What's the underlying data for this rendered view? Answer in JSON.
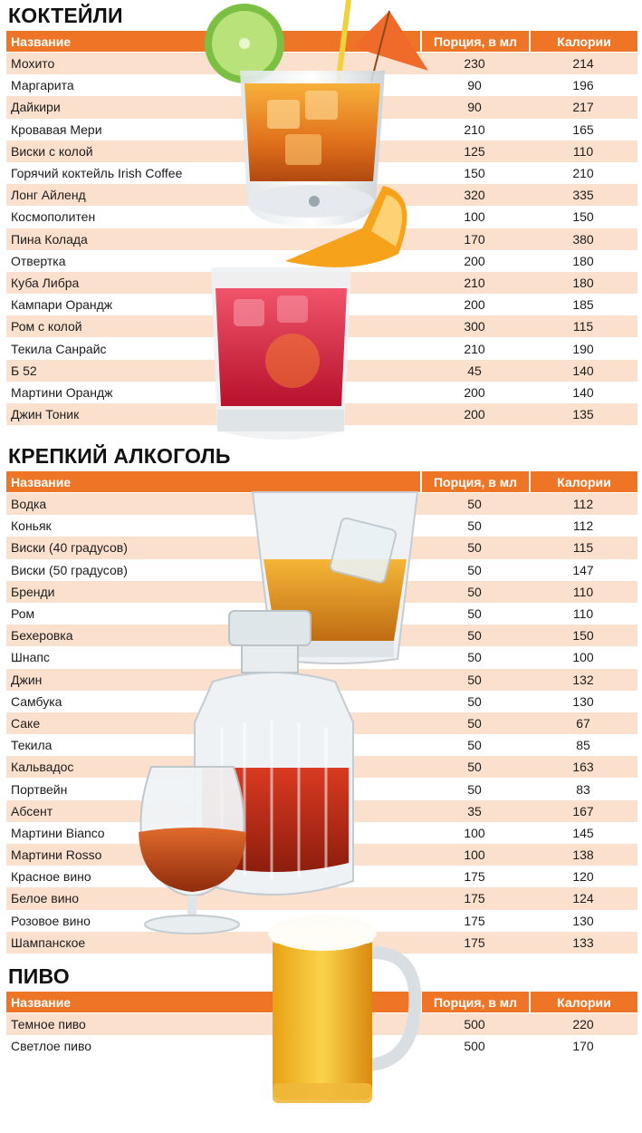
{
  "columns": {
    "name": "Название",
    "portion": "Порция, в мл",
    "calories": "Калории"
  },
  "sections": [
    {
      "title": "КОКТЕЙЛИ",
      "rows": [
        {
          "name": "Мохито",
          "portion": "230",
          "calories": "214"
        },
        {
          "name": "Маргарита",
          "portion": "90",
          "calories": "196"
        },
        {
          "name": "Дайкири",
          "portion": "90",
          "calories": "217"
        },
        {
          "name": "Кровавая Мери",
          "portion": "210",
          "calories": "165"
        },
        {
          "name": "Виски с колой",
          "portion": "125",
          "calories": "110"
        },
        {
          "name": "Горячий коктейль Irish Coffee",
          "portion": "150",
          "calories": "210"
        },
        {
          "name": "Лонг Айленд",
          "portion": "320",
          "calories": "335"
        },
        {
          "name": "Космополитен",
          "portion": "100",
          "calories": "150"
        },
        {
          "name": "Пина Колада",
          "portion": "170",
          "calories": "380"
        },
        {
          "name": "Отвертка",
          "portion": "200",
          "calories": "180"
        },
        {
          "name": "Куба Либра",
          "portion": "210",
          "calories": "180"
        },
        {
          "name": "Кампари Орандж",
          "portion": "200",
          "calories": "185"
        },
        {
          "name": "Ром с колой",
          "portion": "300",
          "calories": "115"
        },
        {
          "name": "Текила Санрайс",
          "portion": "210",
          "calories": "190"
        },
        {
          "name": "Б 52",
          "portion": "45",
          "calories": "140"
        },
        {
          "name": "Мартини Орандж",
          "portion": "200",
          "calories": "140"
        },
        {
          "name": "Джин Тоник",
          "portion": "200",
          "calories": "135"
        }
      ]
    },
    {
      "title": "КРЕПКИЙ АЛКОГОЛЬ",
      "rows": [
        {
          "name": "Водка",
          "portion": "50",
          "calories": "112"
        },
        {
          "name": "Коньяк",
          "portion": "50",
          "calories": "112"
        },
        {
          "name": "Виски (40 градусов)",
          "portion": "50",
          "calories": "115"
        },
        {
          "name": "Виски (50 градусов)",
          "portion": "50",
          "calories": "147"
        },
        {
          "name": "Бренди",
          "portion": "50",
          "calories": "110"
        },
        {
          "name": "Ром",
          "portion": "50",
          "calories": "110"
        },
        {
          "name": "Бехеровка",
          "portion": "50",
          "calories": "150"
        },
        {
          "name": "Шнапс",
          "portion": "50",
          "calories": "100"
        },
        {
          "name": "Джин",
          "portion": "50",
          "calories": "132"
        },
        {
          "name": "Самбука",
          "portion": "50",
          "calories": "130"
        },
        {
          "name": "Саке",
          "portion": "50",
          "calories": "67"
        },
        {
          "name": "Текила",
          "portion": "50",
          "calories": "85"
        },
        {
          "name": "Кальвадос",
          "portion": "50",
          "calories": "163"
        },
        {
          "name": "Портвейн",
          "portion": "50",
          "calories": "83"
        },
        {
          "name": "Абсент",
          "portion": "35",
          "calories": "167"
        },
        {
          "name": "Мартини Bianco",
          "portion": "100",
          "calories": "145"
        },
        {
          "name": "Мартини Rosso",
          "portion": "100",
          "calories": "138"
        },
        {
          "name": "Красное вино",
          "portion": "175",
          "calories": "120"
        },
        {
          "name": "Белое вино",
          "portion": "175",
          "calories": "124"
        },
        {
          "name": "Розовое вино",
          "portion": "175",
          "calories": "130"
        },
        {
          "name": "Шампанское",
          "portion": "175",
          "calories": "133"
        }
      ]
    },
    {
      "title": "ПИВО",
      "rows": [
        {
          "name": "Темное пиво",
          "portion": "500",
          "calories": "220"
        },
        {
          "name": "Светлое пиво",
          "portion": "500",
          "calories": "170"
        }
      ]
    }
  ],
  "colors": {
    "header": "#ee7526",
    "stripe": "#fbe0cd",
    "title": "#111111"
  },
  "illustrations": [
    "cocktail-glass-icon",
    "negroni-glass-icon",
    "whisky-glass-icon",
    "decanter-icon",
    "brandy-snifter-icon",
    "beer-mug-icon"
  ]
}
